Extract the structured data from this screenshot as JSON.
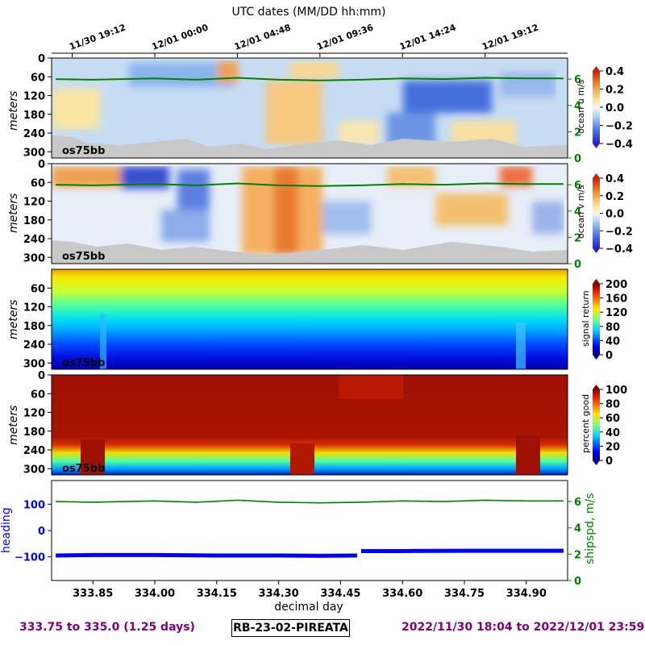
{
  "figure": {
    "top_axis_title": "UTC dates (MM/DD hh:mm)",
    "top_ticks": [
      "11/30 19:12",
      "12/01 00:00",
      "12/01 04:48",
      "12/01 09:36",
      "12/01 14:24",
      "12/01 19:12"
    ],
    "footer_left": "333.75 to 335.0 (1.25 days)",
    "footer_center": "RB-23-02-PIREATA",
    "footer_right": "2022/11/30 18:04 to 2022/12/01 23:59",
    "colors": {
      "ship_line": "#008000",
      "heading": "#0000ff",
      "nodata": "#c8c8c8",
      "footer": "#800080"
    }
  },
  "chart_data": [
    {
      "type": "heatmap",
      "ylabel": "meters",
      "y_ticks": [
        "0",
        "60",
        "120",
        "180",
        "240",
        "300"
      ],
      "ylim": [
        320,
        0
      ],
      "xlim": [
        333.75,
        335.0
      ],
      "instrument": "os75bb",
      "colorbar": {
        "label": "ocean u m/s",
        "ticks": [
          "0.4",
          "0.2",
          "0.0",
          "−0.2",
          "−0.4"
        ],
        "range": [
          -0.4,
          0.4
        ],
        "colormap": "RdYlBu_r (diverging)"
      },
      "overlay_axis_ticks": [
        "6",
        "4",
        "2",
        "0"
      ]
    },
    {
      "type": "heatmap",
      "ylabel": "meters",
      "y_ticks": [
        "0",
        "60",
        "120",
        "180",
        "240",
        "300"
      ],
      "ylim": [
        320,
        0
      ],
      "xlim": [
        333.75,
        335.0
      ],
      "instrument": "os75bb",
      "colorbar": {
        "label": "ocean v m/s",
        "ticks": [
          "0.4",
          "0.2",
          "0.0",
          "−0.2",
          "−0.4"
        ],
        "range": [
          -0.4,
          0.4
        ],
        "colormap": "RdYlBu_r (diverging)"
      },
      "overlay_axis_ticks": [
        "6",
        "4",
        "2",
        "0"
      ]
    },
    {
      "type": "heatmap",
      "ylabel": "meters",
      "y_ticks": [
        "60",
        "120",
        "180",
        "240",
        "300"
      ],
      "ylim": [
        320,
        0
      ],
      "xlim": [
        333.75,
        335.0
      ],
      "instrument": "os75bb",
      "colorbar": {
        "label": "signal return",
        "ticks": [
          "200",
          "160",
          "120",
          "80",
          "40",
          "0"
        ],
        "range": [
          0,
          200
        ],
        "colormap": "jet"
      }
    },
    {
      "type": "heatmap",
      "ylabel": "meters",
      "y_ticks": [
        "0",
        "60",
        "120",
        "180",
        "240",
        "300"
      ],
      "ylim": [
        320,
        0
      ],
      "xlim": [
        333.75,
        335.0
      ],
      "instrument": "os75bb",
      "colorbar": {
        "label": "percent good",
        "ticks": [
          "100",
          "80",
          "60",
          "40",
          "20",
          "0"
        ],
        "range": [
          0,
          100
        ],
        "colormap": "jet"
      }
    },
    {
      "type": "line",
      "xlabel": "decimal day",
      "x_ticks": [
        "333.85",
        "334.00",
        "334.15",
        "334.30",
        "334.45",
        "334.60",
        "334.75",
        "334.90"
      ],
      "xlim": [
        333.75,
        335.0
      ],
      "left_axis": {
        "label": "heading",
        "ticks": [
          "100",
          "0",
          "−100"
        ],
        "ylim": [
          -190,
          190
        ]
      },
      "right_axis": {
        "label": "shipspd, m/s",
        "ticks": [
          "6",
          "4",
          "2",
          "0"
        ],
        "ylim": [
          0,
          7.6
        ]
      },
      "series": [
        {
          "name": "heading",
          "x": [
            333.76,
            333.85,
            334.0,
            334.15,
            334.3,
            334.4,
            334.49,
            334.5,
            334.6,
            334.75,
            334.9,
            334.99
          ],
          "values": [
            -95,
            -93,
            -93,
            -95,
            -95,
            -96,
            -95,
            -78,
            -78,
            -77,
            -77,
            -77
          ]
        },
        {
          "name": "shipspd, m/s",
          "x": [
            333.76,
            333.85,
            334.0,
            334.1,
            334.2,
            334.3,
            334.4,
            334.5,
            334.6,
            334.7,
            334.8,
            334.9,
            334.99
          ],
          "values": [
            6.0,
            5.95,
            6.05,
            5.95,
            6.1,
            5.95,
            5.9,
            5.95,
            6.05,
            6.0,
            6.1,
            6.05,
            6.05
          ]
        }
      ]
    }
  ]
}
